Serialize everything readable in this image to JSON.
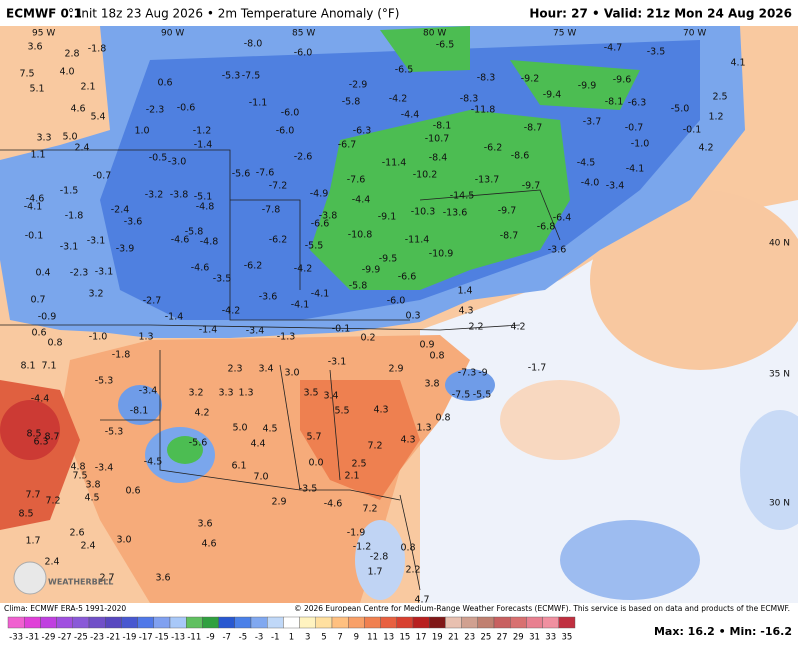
{
  "header": {
    "model": "ECMWF 0.1",
    "subtitle": "° Init 18z 23 Aug 2026 • 2m Temperature Anomaly (°F)",
    "valid": "Hour: 27 • Valid: 21z Mon 24 Aug 2026"
  },
  "map": {
    "lon_labels": [
      "95 W",
      "90 W",
      "85 W",
      "80 W",
      "75 W",
      "70 W"
    ],
    "lat_labels": [
      "40 N",
      "35 N",
      "30 N"
    ],
    "anomaly_labels": [
      "3.6",
      "2.8",
      "-1.8",
      "7.5",
      "4.0",
      "5.1",
      "2.1",
      "0.6",
      "-8.0",
      "-6.0",
      "-6.5",
      "-4.7",
      "-3.5",
      "4.1",
      "-6.5",
      "-8.3",
      "-9.2",
      "-9.9",
      "-9.6",
      "-5.3",
      "-7.5",
      "-2.9",
      "-4.2",
      "-8.3",
      "-11.8",
      "-9.4",
      "-8.1",
      "-6.3",
      "-5.0",
      "2.5",
      "4.6",
      "5.4",
      "-2.3",
      "-0.6",
      "-1.1",
      "-6.0",
      "-5.8",
      "-4.4",
      "-8.1",
      "-8.7",
      "-3.7",
      "-0.7",
      "-0.1",
      "1.2",
      "3.3",
      "5.0",
      "1.0",
      "-1.2",
      "-6.0",
      "-6.3",
      "-10.7",
      "-6.2",
      "-1.0",
      "4.2",
      "2.4",
      "-1.4",
      "-6.7",
      "-8.4",
      "-8.6",
      "-4.5",
      "-4.1",
      "1.1",
      "-0.5",
      "-3.0",
      "-2.6",
      "-11.4",
      "-0.7",
      "-5.6",
      "-7.6",
      "-10.2",
      "-13.7",
      "-9.7",
      "-4.0",
      "-3.4",
      "-1.5",
      "-7.6",
      "-7.2",
      "-4.9",
      "-14.5",
      "-3.2",
      "-3.8",
      "-5.1",
      "-4.6",
      "-4.4",
      "-4.1",
      "-4.8",
      "-7.8",
      "-10.3",
      "-13.6",
      "-9.7",
      "-2.4",
      "-1.8",
      "-3.8",
      "-9.1",
      "-6.4",
      "-3.6",
      "-6.6",
      "-6.8",
      "-5.8",
      "-0.1",
      "-10.8",
      "-4.6",
      "-4.8",
      "-6.2",
      "-11.4",
      "-8.7",
      "-3.1",
      "-3.1",
      "-5.5",
      "-3.6",
      "-3.9",
      "-9.5",
      "-10.9",
      "-6.2",
      "-4.6",
      "-4.2",
      "-9.9",
      "-6.6",
      "0.4",
      "-2.3",
      "-3.1",
      "-3.5",
      "-5.8",
      "1.4",
      "3.2",
      "-2.7",
      "-3.6",
      "-4.1",
      "-4.1",
      "-6.0",
      "4.3",
      "0.7",
      "0.3",
      "-0.9",
      "-1.4",
      "-4.2",
      "2.2",
      "4.2",
      "0.6",
      "-1.0",
      "1.3",
      "-1.4",
      "-3.4",
      "-1.3",
      "-0.1",
      "0.2",
      "0.8",
      "-1.8",
      "0.9",
      "0.8",
      "8.1",
      "7.1",
      "-3.1",
      "2.3",
      "3.4",
      "3.0",
      "2.9",
      "-7.3",
      "-9",
      "-1.7",
      "-5.3",
      "3.8",
      "-3.4",
      "3.2",
      "3.3",
      "1.3",
      "3.5",
      "3.4",
      "-7.5",
      "-5.5",
      "-4.4",
      "-8.1",
      "4.2",
      "5.5",
      "4.3",
      "0.8",
      "5.0",
      "4.5",
      "-5.3",
      "8.5",
      "6.3",
      "8.7",
      "1.3",
      "5.7",
      "4.4",
      "-5.6",
      "7.2",
      "4.3",
      "-4.5",
      "0.0",
      "2.5",
      "6.1",
      "4.8",
      "-3.4",
      "7.5",
      "7.0",
      "2.1",
      "3.8",
      "0.6",
      "-3.5",
      "4.5",
      "7.7",
      "7.2",
      "2.9",
      "-4.6",
      "7.2",
      "8.5",
      "3.6",
      "2.6",
      "1.7",
      "3.0",
      "2.4",
      "-1.9",
      "4.6",
      "-1.2",
      "0.8",
      "2.4",
      "-2.8",
      "2.7",
      "3.6",
      "1.7",
      "2.2",
      "4.7"
    ],
    "logo": "WEATHERBELL"
  },
  "footer": {
    "clima": "Clima: ECMWF ERA-5 1991-2020",
    "copyright": "© 2026 European Centre for Medium-Range Weather Forecasts (ECMWF). This service is based on data and products of the ECMWF.",
    "maxmin": "Max: 16.2 • Min: -16.2"
  },
  "colorbar": {
    "ticks": [
      -33,
      -31,
      -29,
      -27,
      -25,
      -23,
      -21,
      -19,
      -17,
      -15,
      -13,
      -11,
      -9,
      -7,
      -5,
      -3,
      -1,
      1,
      3,
      5,
      7,
      9,
      11,
      13,
      15,
      17,
      19,
      21,
      23,
      25,
      27,
      29,
      31,
      33,
      35
    ],
    "colors": [
      "#f060d0",
      "#e040d8",
      "#c040e0",
      "#a050e0",
      "#8a5ad8",
      "#7050c8",
      "#5848c0",
      "#4858d0",
      "#5078e8",
      "#80a0f0",
      "#a8c8f8",
      "#60c060",
      "#30a040",
      "#2858d0",
      "#4a80e8",
      "#80a8f0",
      "#c0d8f8",
      "#ffffff",
      "#fff3c0",
      "#ffe0a0",
      "#ffc080",
      "#f8a068",
      "#f08050",
      "#e86040",
      "#d84030",
      "#b82020",
      "#801818",
      "#e8c0b0",
      "#d0a090",
      "#c08070",
      "#c86060",
      "#d87070",
      "#e88090",
      "#f090a0",
      "#c03040"
    ]
  }
}
